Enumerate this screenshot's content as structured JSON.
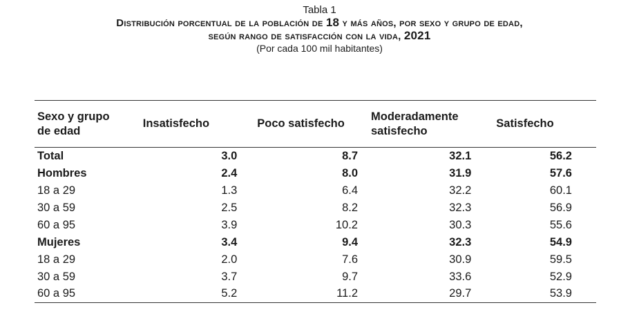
{
  "header": {
    "tabla_label": "Tabla 1",
    "title_line1_a": "Distribución porcentual de la población de ",
    "title_line1_b": "18",
    "title_line1_c": " y más años, por sexo y grupo de edad,",
    "title_line2_a": "según rango de satisfacción con la vida, ",
    "title_line2_b": "2021",
    "subtitle": "(Por cada 100 mil habitantes)"
  },
  "table": {
    "columns": [
      {
        "line1": "Sexo y grupo",
        "line2": "de edad"
      },
      {
        "line1": "Insatisfecho",
        "line2": ""
      },
      {
        "line1": "Poco satisfecho",
        "line2": ""
      },
      {
        "line1": "Moderadamente",
        "line2": "satisfecho"
      },
      {
        "line1": "Satisfecho",
        "line2": ""
      }
    ],
    "rows": [
      {
        "label": "Total",
        "v1": "3.0",
        "v2": "8.7",
        "v3": "32.1",
        "v4": "56.2"
      },
      {
        "label": "Hombres",
        "v1": "2.4",
        "v2": "8.0",
        "v3": "31.9",
        "v4": "57.6"
      },
      {
        "label": "18 a 29",
        "v1": "1.3",
        "v2": "6.4",
        "v3": "32.2",
        "v4": "60.1"
      },
      {
        "label": "30 a 59",
        "v1": "2.5",
        "v2": "8.2",
        "v3": "32.3",
        "v4": "56.9"
      },
      {
        "label": "60 a 95",
        "v1": "3.9",
        "v2": "10.2",
        "v3": "30.3",
        "v4": "55.6"
      },
      {
        "label": "Mujeres",
        "v1": "3.4",
        "v2": "9.4",
        "v3": "32.3",
        "v4": "54.9"
      },
      {
        "label": "18 a 29",
        "v1": "2.0",
        "v2": "7.6",
        "v3": "30.9",
        "v4": "59.5"
      },
      {
        "label": "30 a 59",
        "v1": "3.7",
        "v2": "9.7",
        "v3": "33.6",
        "v4": "52.9"
      },
      {
        "label": "60 a 95",
        "v1": "5.2",
        "v2": "11.2",
        "v3": "29.7",
        "v4": "53.9"
      }
    ]
  }
}
